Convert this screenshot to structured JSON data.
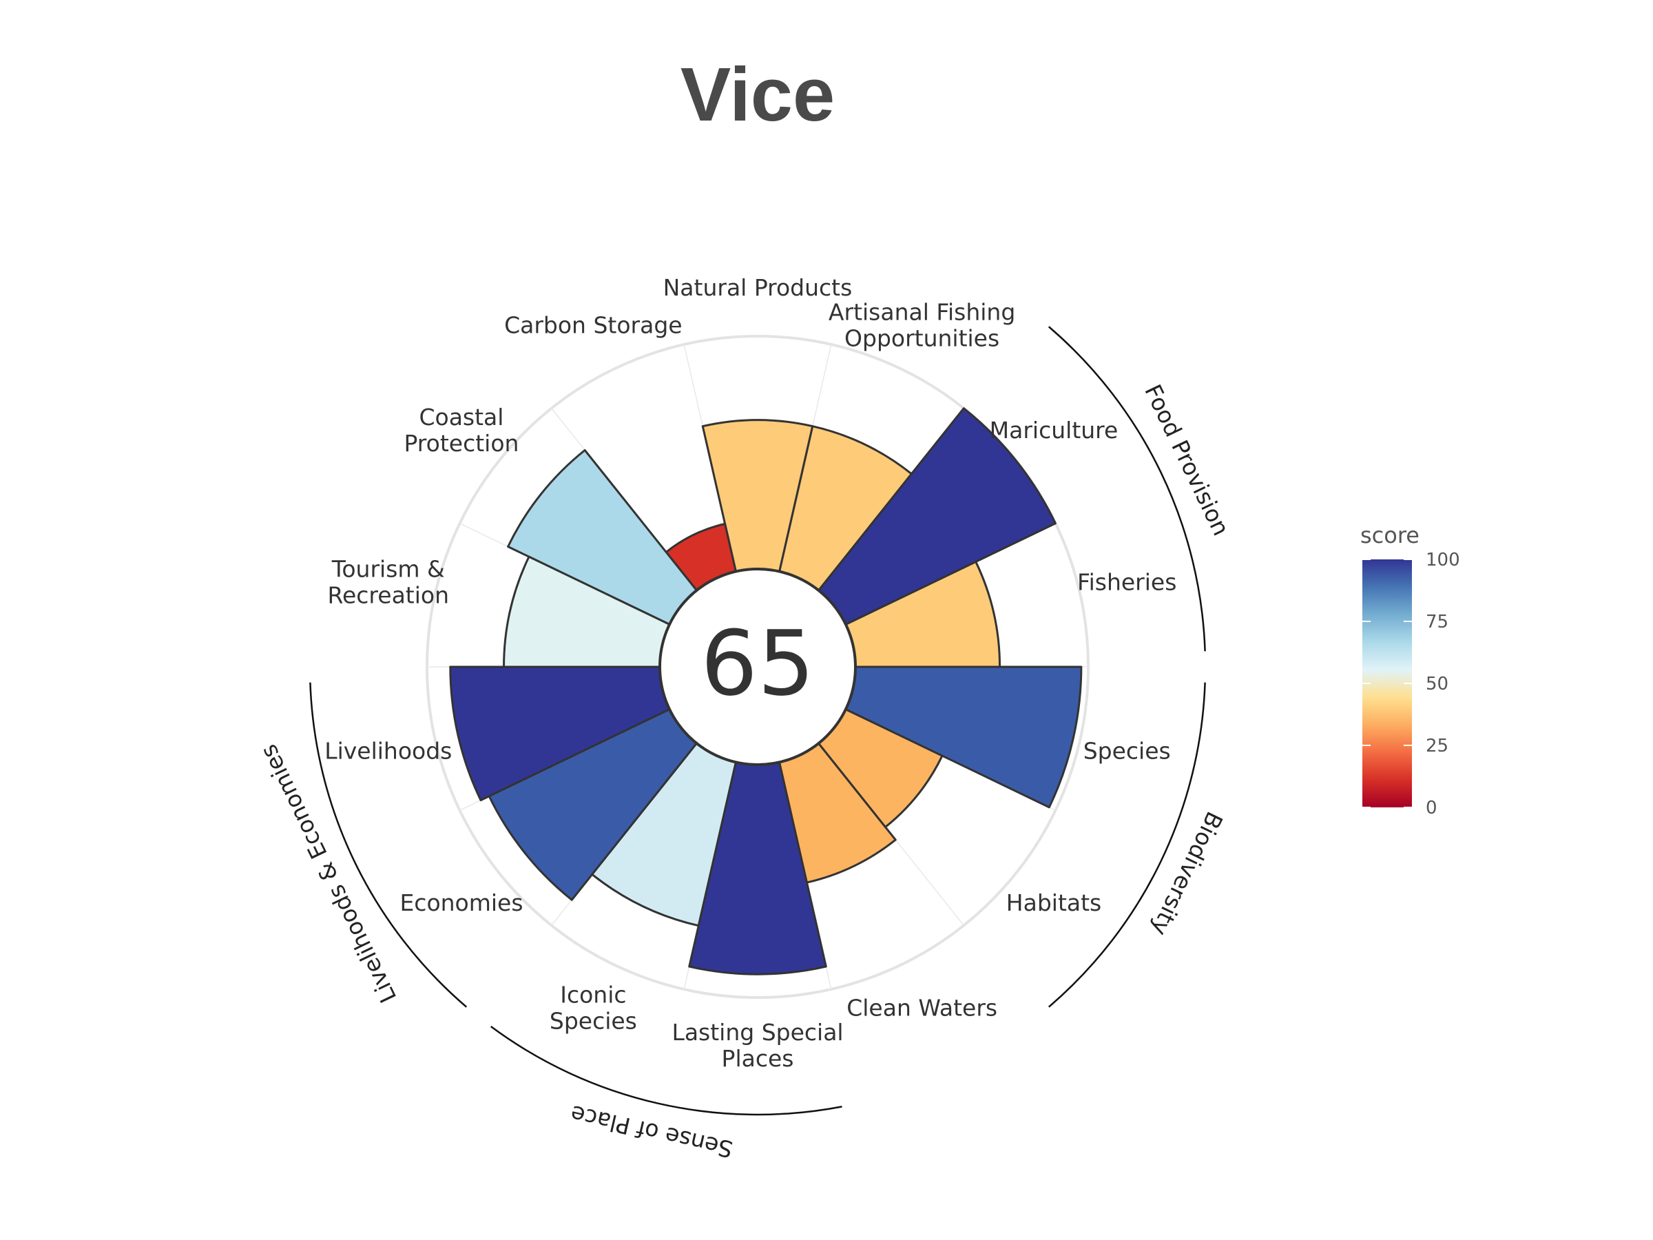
{
  "chart_data": {
    "type": "polar-bar",
    "title": "Vice",
    "center_score": "65",
    "petals": [
      {
        "label": [
          "Fisheries"
        ],
        "score": 62,
        "color": "#fecb79"
      },
      {
        "label": [
          "Mariculture"
        ],
        "score": 100,
        "color": "#313695"
      },
      {
        "label": [
          "Artisanal Fishing",
          "Opportunities"
        ],
        "score": 64,
        "color": "#fecb79"
      },
      {
        "label": [
          "Natural Products"
        ],
        "score": 64,
        "color": "#fecb79"
      },
      {
        "label": [
          "Carbon Storage"
        ],
        "score": 21,
        "color": "#d73027"
      },
      {
        "label": [
          "Coastal",
          "Protection"
        ],
        "score": 77,
        "color": "#abd9e9"
      },
      {
        "label": [
          "Tourism &",
          "Recreation"
        ],
        "score": 67,
        "color": "#e0f3f2"
      },
      {
        "label": [
          "Livelihoods"
        ],
        "score": 90,
        "color": "#313695"
      },
      {
        "label": [
          "Economies"
        ],
        "score": 86,
        "color": "#3a5ca8"
      },
      {
        "label": [
          "Iconic",
          "Species"
        ],
        "score": 72,
        "color": "#d2ebf3"
      },
      {
        "label": [
          "Lasting Special",
          "Places"
        ],
        "score": 90,
        "color": "#313695"
      },
      {
        "label": [
          "Clean Waters"
        ],
        "score": 53,
        "color": "#fdb461"
      },
      {
        "label": [
          "Habitats"
        ],
        "score": 46,
        "color": "#fdb461"
      },
      {
        "label": [
          "Species"
        ],
        "score": 97,
        "color": "#3a5ca8"
      }
    ],
    "groups": [
      {
        "label": "Food Provision"
      },
      {
        "label": "Biodiversity"
      },
      {
        "label": "Sense of Place"
      },
      {
        "label": "Livelihoods & Economies"
      }
    ],
    "legend": {
      "title": "score",
      "ticks": [
        "0",
        "25",
        "50",
        "75",
        "100"
      ],
      "range": [
        0,
        100
      ],
      "colors": [
        "#a50026",
        "#d73027",
        "#f46d43",
        "#fdae61",
        "#fee090",
        "#e0f3f8",
        "#abd9e9",
        "#74add1",
        "#4575b4",
        "#313695"
      ]
    }
  }
}
